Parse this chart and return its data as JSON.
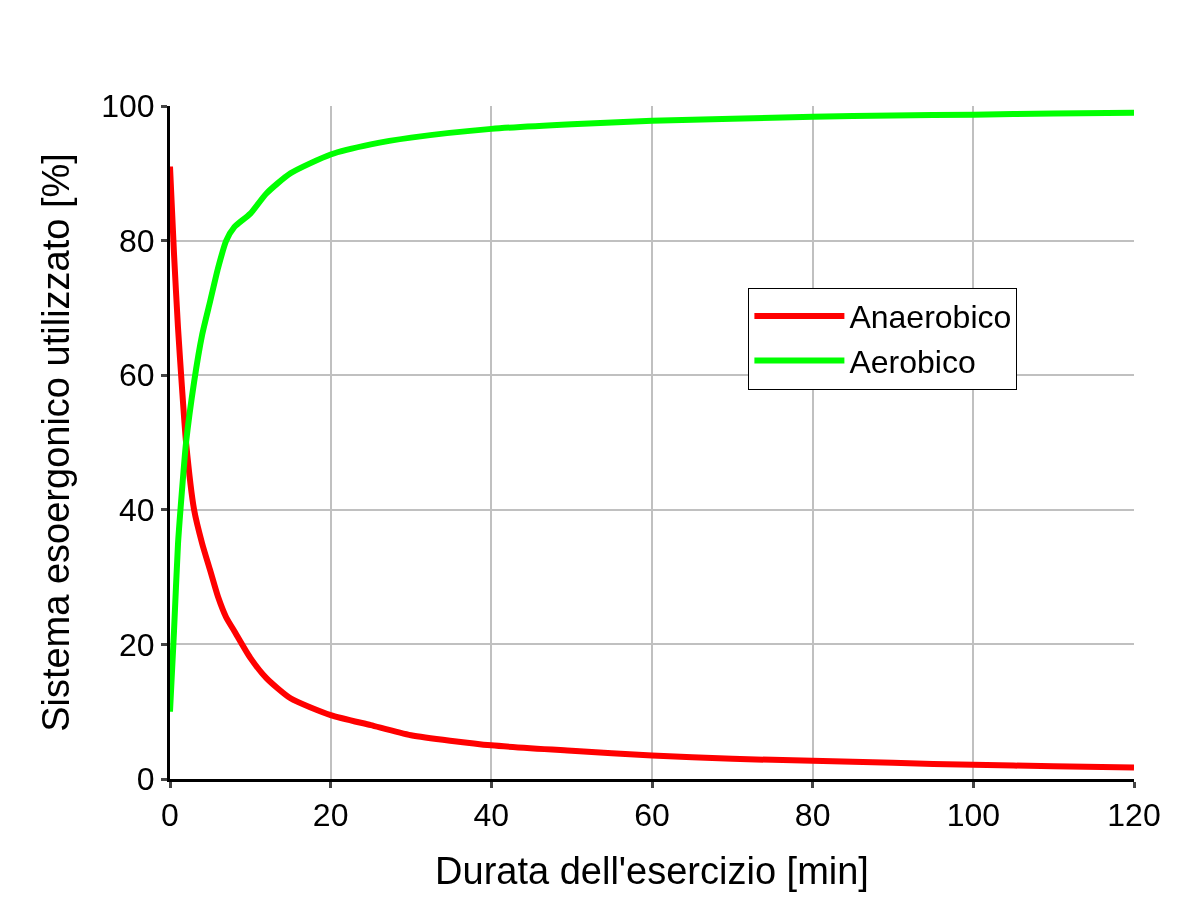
{
  "chart_data": {
    "type": "line",
    "xlabel": "Durata dell'esercizio [min]",
    "ylabel": "Sistema esoergonico utilizzato [%]",
    "xlim": [
      0,
      120
    ],
    "xticks": [
      0,
      20,
      40,
      60,
      80,
      100,
      120
    ],
    "ylim": [
      0,
      100
    ],
    "yticks": [
      0,
      20,
      40,
      60,
      80,
      100
    ],
    "grid": true,
    "legend": "right",
    "marker": "none",
    "line_style": "solid",
    "series": [
      {
        "name": "Anaerobico",
        "color": "#ff0000",
        "x": [
          0,
          0.5,
          1,
          1.5,
          2,
          3,
          4,
          5,
          6,
          7,
          8,
          10,
          12,
          15,
          20,
          25,
          30,
          40,
          50,
          60,
          70,
          80,
          90,
          100,
          110,
          120
        ],
        "values": [
          91,
          78,
          67,
          58,
          50,
          40,
          35,
          31,
          27,
          24,
          22,
          18,
          15,
          12,
          9.5,
          8,
          6.5,
          5,
          4.2,
          3.5,
          3,
          2.7,
          2.4,
          2.1,
          1.9,
          1.7
        ]
      },
      {
        "name": "Aerobico",
        "color": "#00ff00",
        "x": [
          0,
          0.5,
          1,
          1.5,
          2,
          3,
          4,
          5,
          6,
          7,
          8,
          10,
          12,
          15,
          20,
          25,
          30,
          40,
          50,
          60,
          70,
          80,
          90,
          100,
          110,
          120
        ],
        "values": [
          10,
          22,
          35,
          43,
          50,
          59,
          66,
          71,
          76,
          80,
          82,
          84,
          87,
          90,
          92.8,
          94.3,
          95.3,
          96.6,
          97.3,
          97.8,
          98.1,
          98.4,
          98.6,
          98.7,
          98.9,
          99
        ]
      }
    ]
  }
}
